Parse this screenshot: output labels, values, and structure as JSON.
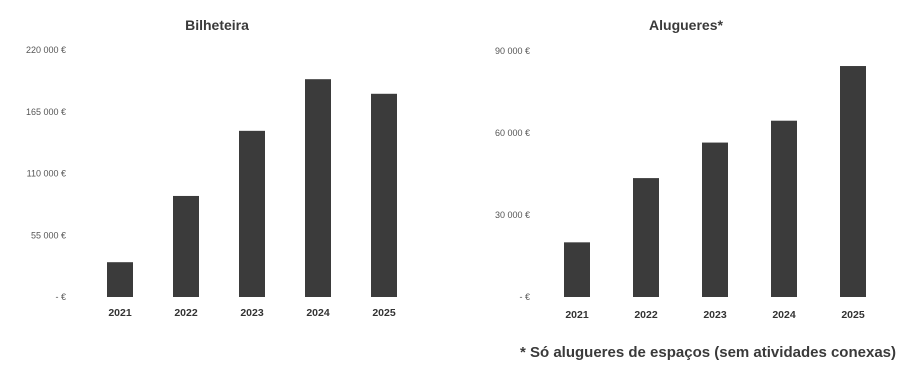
{
  "chart_data": [
    {
      "type": "bar",
      "title": "Bilheteira",
      "categories": [
        "2021",
        "2022",
        "2023",
        "2024",
        "2025"
      ],
      "values": [
        31000,
        90000,
        148000,
        194000,
        181000
      ],
      "ylim": [
        0,
        220000
      ],
      "yticks": [
        0,
        55000,
        110000,
        165000,
        220000
      ],
      "ytick_labels": [
        "- €",
        "55 000 €",
        "110 000 €",
        "165 000 €",
        "220 000 €"
      ],
      "grid": false,
      "bar_color": "#3b3b3b"
    },
    {
      "type": "bar",
      "title": "Alugueres*",
      "categories": [
        "2021",
        "2022",
        "2023",
        "2024",
        "2025"
      ],
      "values": [
        20000,
        43500,
        56500,
        64500,
        84500
      ],
      "ylim": [
        0,
        90000
      ],
      "yticks": [
        0,
        30000,
        60000,
        90000
      ],
      "ytick_labels": [
        "- €",
        "30 000 €",
        "60 000 €",
        "90 000 €"
      ],
      "grid": false,
      "bar_color": "#3b3b3b"
    }
  ],
  "footnote": "* Só alugueres de espaços (sem atividades conexas)"
}
